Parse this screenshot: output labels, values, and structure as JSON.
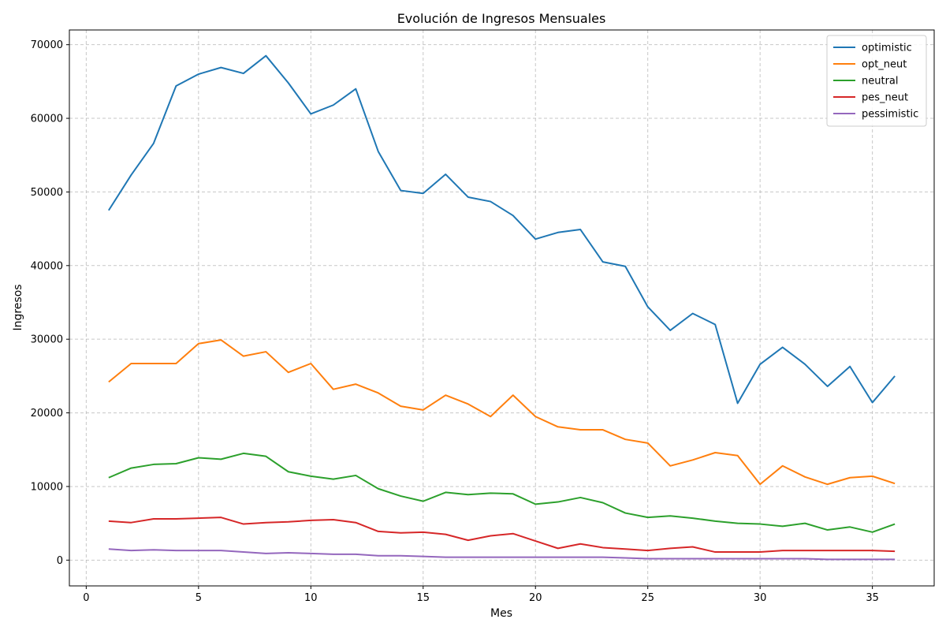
{
  "chart_data": {
    "type": "line",
    "title": "Evolución de Ingresos Mensuales",
    "xlabel": "Mes",
    "ylabel": "Ingresos",
    "xlim": [
      -0.75,
      37.75
    ],
    "ylim": [
      -3500,
      72000
    ],
    "xticks": [
      0,
      5,
      10,
      15,
      20,
      25,
      30,
      35
    ],
    "yticks": [
      0,
      10000,
      20000,
      30000,
      40000,
      50000,
      60000,
      70000
    ],
    "grid": true,
    "legend_position": "top-right",
    "x": [
      1,
      2,
      3,
      4,
      5,
      6,
      7,
      8,
      9,
      10,
      11,
      12,
      13,
      14,
      15,
      16,
      17,
      18,
      19,
      20,
      21,
      22,
      23,
      24,
      25,
      26,
      27,
      28,
      29,
      30,
      31,
      32,
      33,
      34,
      35,
      36
    ],
    "series": [
      {
        "name": "optimistic",
        "color": "#1f77b4",
        "values": [
          47500,
          52300,
          56600,
          64400,
          66000,
          66900,
          66100,
          68500,
          64800,
          60600,
          61800,
          64000,
          55500,
          50200,
          49800,
          52400,
          49300,
          48700,
          46800,
          43600,
          44500,
          44900,
          40500,
          39900,
          34400,
          31200,
          33500,
          32000,
          21300,
          26600,
          28900,
          26600,
          23600,
          26300,
          21400,
          25000
        ]
      },
      {
        "name": "opt_neut",
        "color": "#ff7f0e",
        "values": [
          24200,
          26700,
          26700,
          26700,
          29400,
          29900,
          27700,
          28300,
          25500,
          26700,
          23200,
          23900,
          22700,
          20900,
          20400,
          22400,
          21200,
          19500,
          22400,
          19500,
          18100,
          17700,
          17700,
          16400,
          15900,
          12800,
          13600,
          14600,
          14200,
          10300,
          12800,
          11300,
          10300,
          11200,
          11400,
          10400
        ]
      },
      {
        "name": "neutral",
        "color": "#2ca02c",
        "values": [
          11200,
          12500,
          13000,
          13100,
          13900,
          13700,
          14500,
          14100,
          12000,
          11400,
          11000,
          11500,
          9700,
          8700,
          8000,
          9200,
          8900,
          9100,
          9000,
          7600,
          7900,
          8500,
          7800,
          6400,
          5800,
          6000,
          5700,
          5300,
          5000,
          4900,
          4600,
          5000,
          4100,
          4500,
          3800,
          4900
        ]
      },
      {
        "name": "pes_neut",
        "color": "#d62728",
        "values": [
          5300,
          5100,
          5600,
          5600,
          5700,
          5800,
          4900,
          5100,
          5200,
          5400,
          5500,
          5100,
          3900,
          3700,
          3800,
          3500,
          2700,
          3300,
          3600,
          2600,
          1600,
          2200,
          1700,
          1500,
          1300,
          1600,
          1800,
          1100,
          1100,
          1100,
          1300,
          1300,
          1300,
          1300,
          1300,
          1200
        ]
      },
      {
        "name": "pessimistic",
        "color": "#9467bd",
        "values": [
          1500,
          1300,
          1400,
          1300,
          1300,
          1300,
          1100,
          900,
          1000,
          900,
          800,
          800,
          600,
          600,
          500,
          400,
          400,
          400,
          400,
          400,
          400,
          400,
          400,
          300,
          200,
          200,
          200,
          200,
          200,
          200,
          200,
          200,
          100,
          100,
          100,
          100
        ]
      }
    ]
  }
}
